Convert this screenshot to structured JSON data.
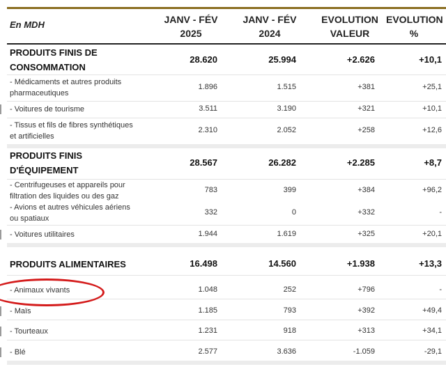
{
  "header": {
    "unit_label": "En MDH",
    "col1": [
      "JANV - FÉV",
      "2025"
    ],
    "col2": [
      "JANV - FÉV",
      "2024"
    ],
    "col3": [
      "EVOLUTION",
      "VALEUR"
    ],
    "col4": [
      "EVOLUTION",
      "%"
    ]
  },
  "rows": [
    {
      "label": [
        "PRODUITS FINIS DE",
        "CONSOMMATION"
      ],
      "v1": "28.620",
      "v2": "25.994",
      "v3": "+2.626",
      "v4": "+10,1"
    },
    {
      "label": [
        "- Médicaments et autres produits",
        "pharmaceutiques"
      ],
      "v1": "1.896",
      "v2": "1.515",
      "v3": "+381",
      "v4": "+25,1"
    },
    {
      "label": [
        "- Voitures de tourisme"
      ],
      "v1": "3.511",
      "v2": "3.190",
      "v3": "+321",
      "v4": "+10,1"
    },
    {
      "label": [
        "- Tissus et fils de fibres synthétiques",
        "et artificielles"
      ],
      "v1": "2.310",
      "v2": "2.052",
      "v3": "+258",
      "v4": "+12,6"
    },
    {
      "label": [
        "PRODUITS FINIS",
        "D'ÉQUIPEMENT"
      ],
      "v1": "28.567",
      "v2": "26.282",
      "v3": "+2.285",
      "v4": "+8,7"
    },
    {
      "label": [
        "- Centrifugeuses et appareils pour",
        "filtration des liquides ou des gaz"
      ],
      "v1": "783",
      "v2": "399",
      "v3": "+384",
      "v4": "+96,2"
    },
    {
      "label": [
        "- Avions et autres véhicules aériens",
        "ou spatiaux"
      ],
      "v1": "332",
      "v2": "0",
      "v3": "+332",
      "v4": "-"
    },
    {
      "label": [
        "- Voitures utilitaires"
      ],
      "v1": "1.944",
      "v2": "1.619",
      "v3": "+325",
      "v4": "+20,1"
    },
    {
      "label": [
        "PRODUITS ALIMENTAIRES"
      ],
      "v1": "16.498",
      "v2": "14.560",
      "v3": "+1.938",
      "v4": "+13,3"
    },
    {
      "label": [
        "- Animaux vivants"
      ],
      "v1": "1.048",
      "v2": "252",
      "v3": "+796",
      "v4": "-"
    },
    {
      "label": [
        "- Maïs"
      ],
      "v1": "1.185",
      "v2": "793",
      "v3": "+392",
      "v4": "+49,4"
    },
    {
      "label": [
        "- Tourteaux"
      ],
      "v1": "1.231",
      "v2": "918",
      "v3": "+313",
      "v4": "+34,1"
    },
    {
      "label": [
        "- Blé"
      ],
      "v1": "2.577",
      "v2": "3.636",
      "v3": "-1.059",
      "v4": "-29,1"
    }
  ],
  "colors": {
    "accent_line": "#8a6d1f",
    "highlight_circle": "#d41b1b"
  }
}
